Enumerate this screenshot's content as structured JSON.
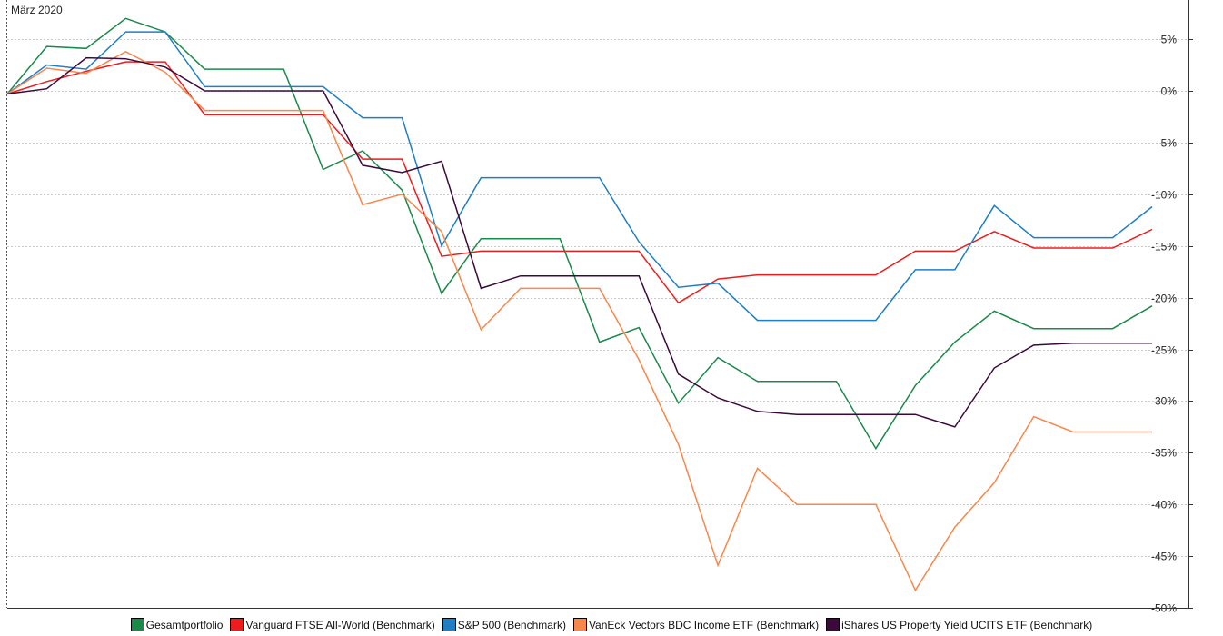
{
  "chart_data": {
    "type": "line",
    "title": "März 2020",
    "xlabel": "",
    "ylabel": "",
    "ylim": [
      -50,
      8.8
    ],
    "yticks": [
      5,
      0,
      -5,
      -10,
      -15,
      -20,
      -25,
      -30,
      -35,
      -40,
      -45,
      -50
    ],
    "ytick_labels": [
      "5%",
      "0%",
      "-5%",
      "-10%",
      "-15%",
      "-20%",
      "-25%",
      "-30%",
      "-35%",
      "-40%",
      "-45%",
      "-50%"
    ],
    "x": [
      0,
      1,
      2,
      3,
      4,
      5,
      6,
      7,
      8,
      9,
      10,
      11,
      12,
      13,
      14,
      15,
      16,
      17,
      18,
      19,
      20,
      21,
      22,
      23,
      24,
      25,
      26,
      27,
      28,
      29
    ],
    "grid": true,
    "legend_position": "bottom",
    "series": [
      {
        "name": "Gesamtportfolio",
        "color": "#1a8a4a",
        "values": [
          -0.3,
          4.3,
          4.1,
          7.0,
          5.7,
          2.1,
          2.1,
          2.1,
          -7.6,
          -5.8,
          -9.6,
          -19.6,
          -14.3,
          -14.3,
          -14.3,
          -24.3,
          -22.9,
          -30.2,
          -25.8,
          -28.1,
          -28.1,
          -28.1,
          -34.6,
          -28.5,
          -24.3,
          -21.3,
          -23.0,
          -23.0,
          -23.0,
          -20.8
        ]
      },
      {
        "name": "Vanguard FTSE All-World (Benchmark)",
        "color": "#ee1c1c",
        "values": [
          -0.3,
          0.9,
          1.9,
          2.8,
          2.8,
          -2.3,
          -2.3,
          -2.3,
          -2.3,
          -6.6,
          -6.6,
          -16.0,
          -15.5,
          -15.5,
          -15.5,
          -15.5,
          -15.5,
          -20.5,
          -18.2,
          -17.8,
          -17.8,
          -17.8,
          -17.8,
          -15.5,
          -15.5,
          -13.6,
          -15.2,
          -15.2,
          -15.2,
          -13.4
        ]
      },
      {
        "name": "S&P 500 (Benchmark)",
        "color": "#1f7fc4",
        "values": [
          -0.3,
          2.5,
          2.1,
          5.7,
          5.7,
          0.4,
          0.4,
          0.4,
          0.4,
          -2.6,
          -2.6,
          -15.0,
          -8.4,
          -8.4,
          -8.4,
          -8.4,
          -14.6,
          -19.0,
          -18.6,
          -22.2,
          -22.2,
          -22.2,
          -22.2,
          -17.3,
          -17.3,
          -11.1,
          -14.2,
          -14.2,
          -14.2,
          -11.2
        ]
      },
      {
        "name": "VanEck Vectors BDC Income ETF (Benchmark)",
        "color": "#f7874a",
        "values": [
          -0.3,
          2.2,
          1.7,
          3.8,
          1.8,
          -1.9,
          -1.9,
          -1.9,
          -1.9,
          -11.0,
          -10.0,
          -13.6,
          -23.1,
          -19.1,
          -19.1,
          -19.1,
          -26.0,
          -34.2,
          -45.9,
          -36.5,
          -40.0,
          -40.0,
          -40.0,
          -48.3,
          -42.2,
          -37.9,
          -31.5,
          -33.0,
          -33.0,
          -33.0
        ]
      },
      {
        "name": "iShares US Property Yield UCITS ETF (Benchmark)",
        "color": "#3b0a3b",
        "values": [
          -0.3,
          0.2,
          3.2,
          3.1,
          2.3,
          0.0,
          0.0,
          0.0,
          0.0,
          -7.2,
          -7.9,
          -6.8,
          -19.1,
          -17.9,
          -17.9,
          -17.9,
          -17.9,
          -27.4,
          -29.7,
          -31.0,
          -31.3,
          -31.3,
          -31.3,
          -31.3,
          -32.5,
          -26.8,
          -24.6,
          -24.4,
          -24.4,
          -24.4
        ]
      }
    ]
  }
}
